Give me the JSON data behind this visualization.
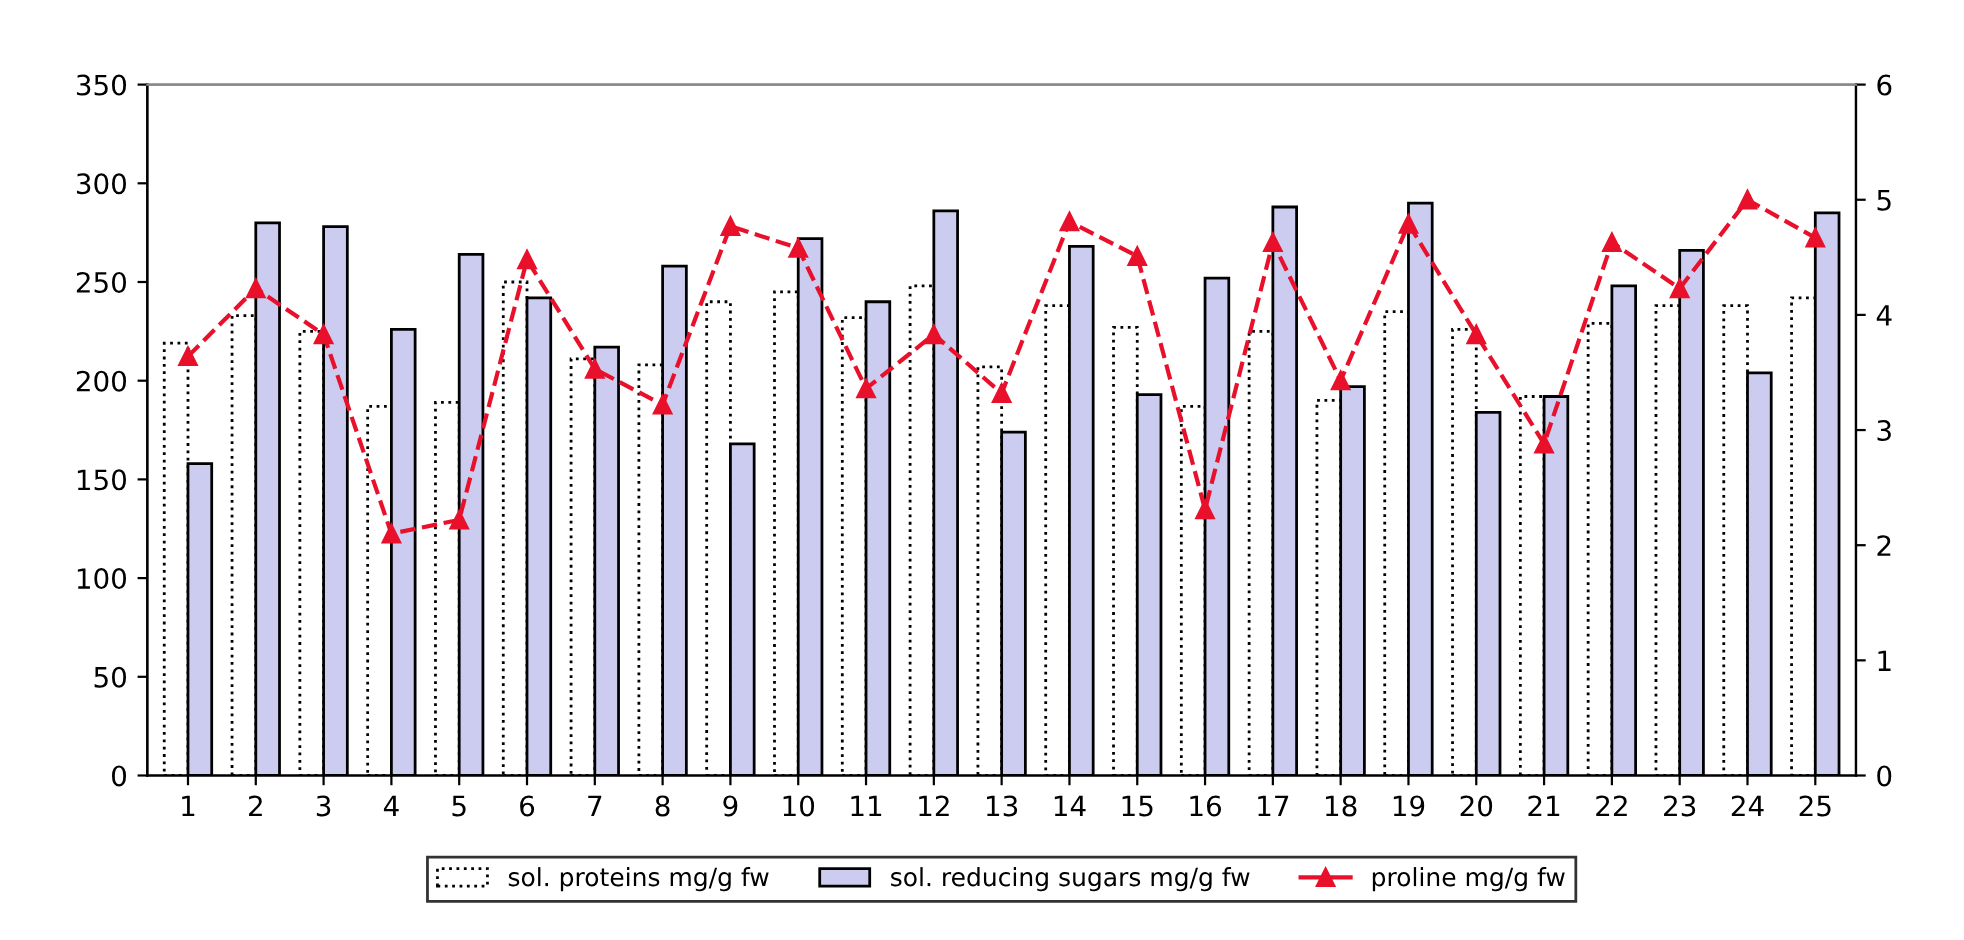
{
  "chart_data": {
    "type": "bar",
    "categories": [
      "1",
      "2",
      "3",
      "4",
      "5",
      "6",
      "7",
      "8",
      "9",
      "10",
      "11",
      "12",
      "13",
      "14",
      "15",
      "16",
      "17",
      "18",
      "19",
      "20",
      "21",
      "22",
      "23",
      "24",
      "25"
    ],
    "series": [
      {
        "name": "sol. proteins mg/g fw",
        "color": "#ffffff",
        "values": [
          219,
          233,
          225,
          187,
          189,
          250,
          211,
          208,
          240,
          245,
          232,
          248,
          207,
          238,
          227,
          187,
          225,
          190,
          235,
          226,
          192,
          229,
          238,
          238,
          242
        ]
      },
      {
        "name": "sol. reducing sugars mg/g fw",
        "color": "#ccccf0",
        "values": [
          158,
          280,
          278,
          226,
          264,
          242,
          217,
          258,
          168,
          272,
          240,
          286,
          174,
          268,
          193,
          252,
          288,
          197,
          290,
          184,
          192,
          248,
          266,
          204,
          285
        ]
      },
      {
        "name": "proline mg/g fw",
        "type": "line",
        "axis": "y2",
        "color": "#e8102a",
        "marker": "triangle",
        "line_style": "dashed",
        "values": [
          3.64,
          4.23,
          3.83,
          2.1,
          2.22,
          4.48,
          3.53,
          3.22,
          4.77,
          4.58,
          3.36,
          3.83,
          3.32,
          4.81,
          4.51,
          2.31,
          4.63,
          3.43,
          4.79,
          3.83,
          2.88,
          4.63,
          4.23,
          5.0,
          4.67
        ]
      }
    ],
    "ylim": [
      0,
      350
    ],
    "yticks": [
      0,
      50,
      100,
      150,
      200,
      250,
      300,
      350
    ],
    "y2lim": [
      0,
      6
    ],
    "y2ticks": [
      0,
      1,
      2,
      3,
      4,
      5,
      6
    ],
    "grid": false,
    "legend": "bottom"
  }
}
